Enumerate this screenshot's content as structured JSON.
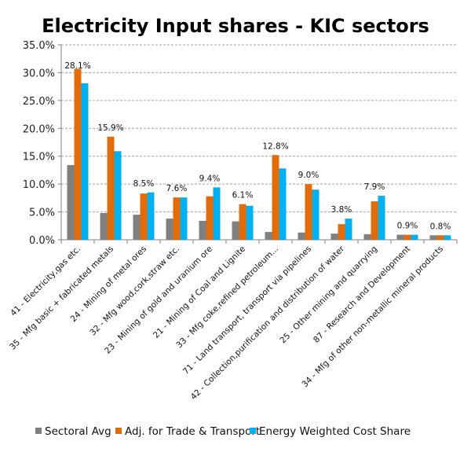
{
  "chart_data": {
    "type": "bar",
    "title": "Electricity Input shares - KIC sectors",
    "xlabel": "",
    "ylabel": "",
    "ylim": [
      0,
      35
    ],
    "yticks": [
      0,
      5,
      10,
      15,
      20,
      25,
      30,
      35
    ],
    "ytick_labels": [
      "0.0%",
      "5.0%",
      "10.0%",
      "15.0%",
      "20.0%",
      "25.0%",
      "30.0%",
      "35.0%"
    ],
    "grid": "horizontal-dashed",
    "legend_position": "bottom",
    "categories": [
      "41 - Electricity,gas etc.",
      "35 - Mfg basic + fabricated metals",
      "24 - Mining of metal ores",
      "32 - Mfg wood,cork,straw etc.",
      "23 - Mining of gold and uranium ore",
      "21 - Mining of Coal and Lignite",
      "33 - Mfg coke,refined petroleum...",
      "71 - Land transport, transport via pipelines",
      "42 - Collection,purification and distribution of water",
      "25 - Other mining and quarrying",
      "87 - Research and Development",
      "34 - Mfg of other non-metallic mineral products"
    ],
    "series": [
      {
        "name": "Sectoral Avg",
        "color": "#808080",
        "values": [
          13.4,
          4.8,
          4.5,
          3.8,
          3.4,
          3.3,
          1.4,
          1.3,
          1.1,
          1.0,
          0.9,
          0.8
        ]
      },
      {
        "name": "Adj. for Trade & Transport",
        "color": "#E36C0A",
        "values": [
          30.7,
          18.5,
          8.3,
          7.6,
          7.8,
          6.4,
          15.2,
          10.0,
          2.8,
          6.9,
          0.9,
          0.8
        ]
      },
      {
        "name": "Energy Weighted Cost Share",
        "color": "#00B0F0",
        "values": [
          28.1,
          15.9,
          8.5,
          7.6,
          9.4,
          6.1,
          12.8,
          9.0,
          3.8,
          7.9,
          0.9,
          0.8
        ]
      }
    ],
    "data_labels": {
      "series": "Energy Weighted Cost Share",
      "labels": [
        "28.1%",
        "15.9%",
        "8.5%",
        "7.6%",
        "9.4%",
        "6.1%",
        "12.8%",
        "9.0%",
        "3.8%",
        "7.9%",
        "0.9%",
        "0.8%"
      ]
    }
  }
}
